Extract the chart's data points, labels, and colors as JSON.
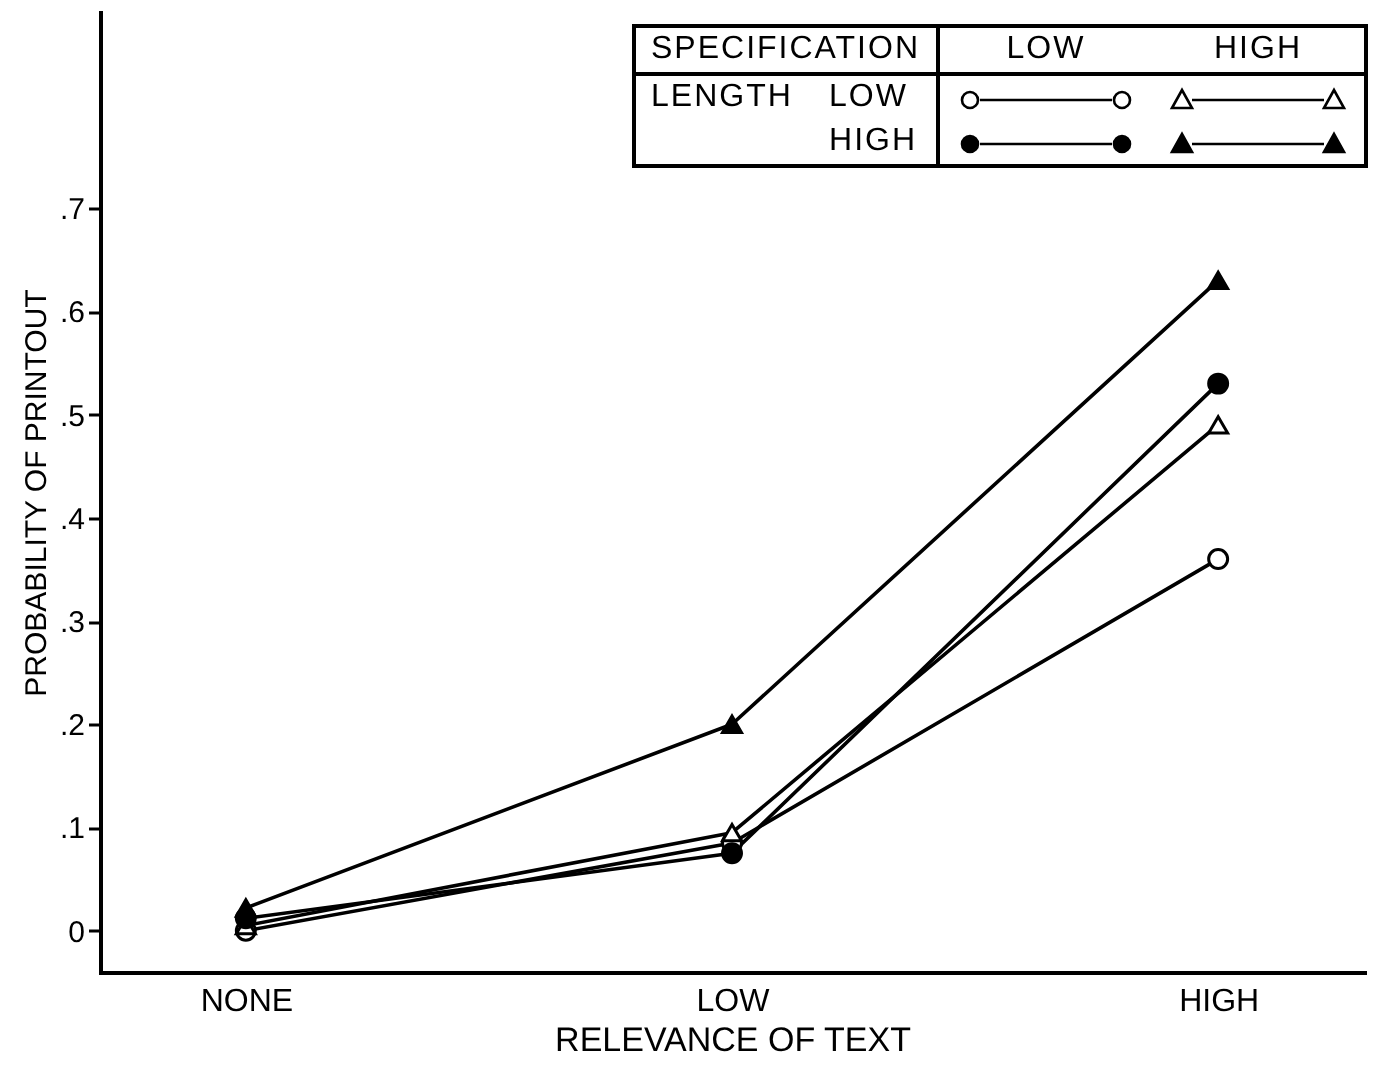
{
  "chart_data": {
    "type": "line",
    "xlabel": "RELEVANCE OF TEXT",
    "ylabel": "PROBABILITY OF PRINTOUT",
    "categories": [
      "NONE",
      "LOW",
      "HIGH"
    ],
    "series": [
      {
        "color": "#000000",
        "marker": "circle",
        "values": [
          0.0,
          0.085,
          0.36
        ]
      },
      {
        "color": "#000000",
        "marker": "triangle",
        "values": [
          0.005,
          0.095,
          0.49
        ]
      },
      {
        "color": "#000000",
        "marker": "circle",
        "values": [
          0.012,
          0.075,
          0.53
        ]
      },
      {
        "color": "#000000",
        "marker": "triangle",
        "values": [
          0.022,
          0.2,
          0.63
        ]
      }
    ],
    "ylim": [
      -0.04,
      0.89
    ],
    "yticks": [
      {
        "value": 0,
        "label": "0"
      },
      {
        "value": 0.1,
        "label": ".1"
      },
      {
        "value": 0.2,
        "label": ".2"
      },
      {
        "value": 0.3,
        "label": ".3"
      },
      {
        "value": 0.4,
        "label": ".4"
      },
      {
        "value": 0.5,
        "label": ".5"
      },
      {
        "value": 0.6,
        "label": ".6"
      },
      {
        "value": 0.7,
        "label": ".7"
      }
    ],
    "grid": false,
    "line_style": "solid",
    "annotations": [
      "SPECIFICATION",
      "LOW",
      "HIGH",
      "LENGTH",
      "LOW",
      "HIGH"
    ]
  }
}
